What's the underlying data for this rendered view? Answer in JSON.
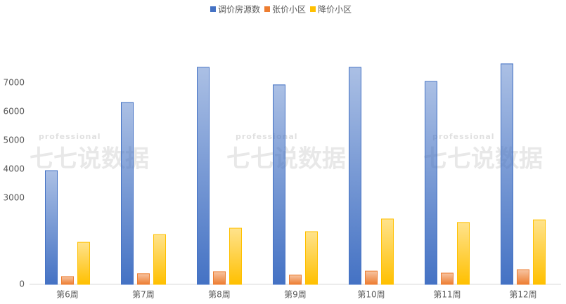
{
  "chart_data": {
    "type": "bar",
    "categories": [
      "第6周",
      "第7周",
      "第8周",
      "第9周",
      "第10周",
      "第11周",
      "第12周"
    ],
    "series": [
      {
        "name": "调价房源数",
        "color": "#4472c4",
        "values": [
          3950,
          6320,
          7540,
          6930,
          7540,
          7050,
          7660
        ]
      },
      {
        "name": "张价小区",
        "color": "#ed7d31",
        "values": [
          270,
          370,
          440,
          320,
          460,
          390,
          510
        ]
      },
      {
        "name": "降价小区",
        "color": "#ffc000",
        "values": [
          1460,
          1730,
          1950,
          1830,
          2270,
          2150,
          2240
        ]
      }
    ],
    "ylim": [
      0,
      8000
    ],
    "yticks": [
      0,
      3000,
      4000,
      5000,
      6000,
      7000
    ],
    "legend": "top",
    "grid": false,
    "watermark": {
      "top": "professional",
      "main": "七七说数据"
    }
  }
}
